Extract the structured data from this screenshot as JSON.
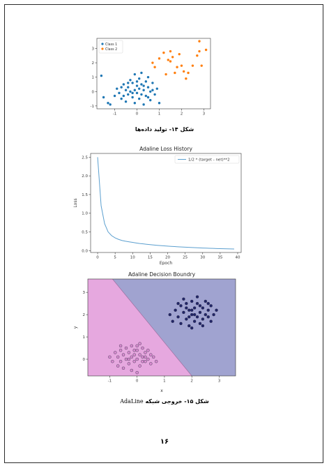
{
  "figures": {
    "fig14": {
      "caption": "شکل ۱۴- تولید داده‌ها"
    },
    "fig15": {
      "caption_rtl": "شکل ۱۵- خروجی شبکه",
      "caption_latin": "AdaLine"
    }
  },
  "page_number": "۱۶",
  "colors": {
    "class1": "#1f77b4",
    "class2": "#ff7f0e",
    "loss_line": "#5b9fcf",
    "region_a": "#e6a8df",
    "region_b": "#a0a3d0",
    "points_a": "#d98ad0",
    "points_b": "#1a1f63"
  },
  "chart_data": [
    {
      "type": "scatter",
      "title": "",
      "xlabel": "",
      "ylabel": "",
      "xlim": [
        -1.8,
        3.3
      ],
      "ylim": [
        -1.2,
        3.7
      ],
      "xticks": [
        -1,
        0,
        1,
        2,
        3
      ],
      "yticks": [
        -1,
        0,
        1,
        2,
        3
      ],
      "legend": "top-left",
      "series": [
        {
          "name": "Class 1",
          "color": "#1f77b4",
          "points": [
            [
              -1.6,
              1.1
            ],
            [
              -1.5,
              -0.4
            ],
            [
              -1.3,
              -0.8
            ],
            [
              -1.2,
              -0.9
            ],
            [
              -1.0,
              -0.3
            ],
            [
              -0.9,
              0.2
            ],
            [
              -0.8,
              -0.1
            ],
            [
              -0.7,
              -0.5
            ],
            [
              -0.6,
              0.5
            ],
            [
              -0.5,
              0.1
            ],
            [
              -0.5,
              -0.7
            ],
            [
              -0.4,
              0.3
            ],
            [
              -0.4,
              -0.2
            ],
            [
              -0.3,
              0.8
            ],
            [
              -0.3,
              0.0
            ],
            [
              -0.2,
              -0.4
            ],
            [
              -0.2,
              0.6
            ],
            [
              -0.1,
              1.2
            ],
            [
              -0.1,
              -0.8
            ],
            [
              0.0,
              0.4
            ],
            [
              0.0,
              -0.1
            ],
            [
              0.1,
              0.9
            ],
            [
              0.1,
              0.2
            ],
            [
              0.1,
              -0.5
            ],
            [
              0.2,
              1.3
            ],
            [
              0.2,
              0.5
            ],
            [
              0.2,
              -0.2
            ],
            [
              0.3,
              0.1
            ],
            [
              0.3,
              -0.9
            ],
            [
              0.4,
              0.7
            ],
            [
              0.4,
              -0.3
            ],
            [
              0.5,
              0.3
            ],
            [
              0.5,
              1.0
            ],
            [
              0.6,
              -0.6
            ],
            [
              0.6,
              0.0
            ],
            [
              0.7,
              0.6
            ],
            [
              0.8,
              -0.2
            ],
            [
              0.9,
              0.2
            ],
            [
              1.0,
              -0.8
            ],
            [
              -0.7,
              0.3
            ],
            [
              -0.6,
              -0.3
            ],
            [
              -0.1,
              0.1
            ],
            [
              0.3,
              0.4
            ],
            [
              -0.2,
              -0.1
            ],
            [
              0.0,
              0.7
            ],
            [
              0.5,
              -0.4
            ],
            [
              -0.4,
              0.6
            ],
            [
              0.7,
              0.1
            ]
          ]
        },
        {
          "name": "Class 2",
          "color": "#ff7f0e",
          "points": [
            [
              0.7,
              2.0
            ],
            [
              0.8,
              1.7
            ],
            [
              1.0,
              2.3
            ],
            [
              1.2,
              2.7
            ],
            [
              1.3,
              1.2
            ],
            [
              1.5,
              2.8
            ],
            [
              1.5,
              2.1
            ],
            [
              1.6,
              2.4
            ],
            [
              1.7,
              1.3
            ],
            [
              1.8,
              1.7
            ],
            [
              1.9,
              2.6
            ],
            [
              2.0,
              1.8
            ],
            [
              2.1,
              1.4
            ],
            [
              2.2,
              0.9
            ],
            [
              2.3,
              1.3
            ],
            [
              2.5,
              1.8
            ],
            [
              2.7,
              2.5
            ],
            [
              2.8,
              3.5
            ],
            [
              2.8,
              2.8
            ],
            [
              2.9,
              1.8
            ],
            [
              3.1,
              2.9
            ],
            [
              1.4,
              2.2
            ]
          ]
        }
      ]
    },
    {
      "type": "line",
      "title": "Adaline Loss History",
      "xlabel": "Epoch",
      "ylabel": "Loss",
      "xlim": [
        -2,
        41
      ],
      "ylim": [
        -0.05,
        2.6
      ],
      "xticks": [
        0,
        5,
        10,
        15,
        20,
        25,
        30,
        35,
        40
      ],
      "yticks": [
        0.0,
        0.5,
        1.0,
        1.5,
        2.0,
        2.5
      ],
      "legend": "top-right",
      "series": [
        {
          "name": "1/2 * (target - net)**2",
          "x": [
            0,
            1,
            2,
            3,
            4,
            5,
            6,
            7,
            8,
            9,
            10,
            11,
            12,
            13,
            14,
            15,
            16,
            17,
            18,
            19,
            20,
            21,
            22,
            23,
            24,
            25,
            26,
            27,
            28,
            29,
            30,
            31,
            32,
            33,
            34,
            35,
            36,
            37,
            38,
            39
          ],
          "values": [
            2.5,
            1.2,
            0.72,
            0.5,
            0.4,
            0.34,
            0.3,
            0.27,
            0.25,
            0.235,
            0.22,
            0.205,
            0.19,
            0.18,
            0.17,
            0.16,
            0.15,
            0.142,
            0.135,
            0.128,
            0.12,
            0.114,
            0.108,
            0.102,
            0.097,
            0.092,
            0.087,
            0.082,
            0.078,
            0.074,
            0.07,
            0.066,
            0.062,
            0.059,
            0.056,
            0.053,
            0.05,
            0.047,
            0.045,
            0.043
          ]
        }
      ]
    },
    {
      "type": "scatter",
      "title": "Adaline Decision Boundry",
      "xlabel": "x",
      "ylabel": "y",
      "xlim": [
        -1.8,
        3.6
      ],
      "ylim": [
        -0.75,
        3.6
      ],
      "xticks": [
        -1,
        0,
        1,
        2,
        3
      ],
      "yticks": [
        0,
        1,
        2,
        3
      ],
      "boundary": [
        [
          -0.9,
          3.6
        ],
        [
          2.0,
          -0.75
        ]
      ],
      "series": [
        {
          "name": "",
          "color": "#d98ad0",
          "points": [
            [
              -1.0,
              0.1
            ],
            [
              -0.9,
              -0.1
            ],
            [
              -0.8,
              0.3
            ],
            [
              -0.7,
              -0.3
            ],
            [
              -0.7,
              0.1
            ],
            [
              -0.6,
              0.4
            ],
            [
              -0.6,
              -0.1
            ],
            [
              -0.5,
              0.2
            ],
            [
              -0.5,
              -0.4
            ],
            [
              -0.4,
              0.5
            ],
            [
              -0.4,
              0.0
            ],
            [
              -0.3,
              -0.2
            ],
            [
              -0.3,
              0.3
            ],
            [
              -0.2,
              0.6
            ],
            [
              -0.2,
              0.1
            ],
            [
              -0.2,
              -0.5
            ],
            [
              -0.1,
              0.2
            ],
            [
              -0.1,
              -0.1
            ],
            [
              0.0,
              0.4
            ],
            [
              0.0,
              0.0
            ],
            [
              0.0,
              -0.6
            ],
            [
              0.1,
              0.7
            ],
            [
              0.1,
              0.2
            ],
            [
              0.1,
              -0.3
            ],
            [
              0.2,
              0.1
            ],
            [
              0.2,
              0.5
            ],
            [
              0.3,
              -0.1
            ],
            [
              0.3,
              0.3
            ],
            [
              0.4,
              0.0
            ],
            [
              0.4,
              0.4
            ],
            [
              0.5,
              -0.2
            ],
            [
              0.5,
              0.2
            ],
            [
              0.6,
              0.1
            ],
            [
              0.7,
              -0.1
            ],
            [
              -0.6,
              0.6
            ],
            [
              -0.3,
              0.0
            ],
            [
              0.2,
              -0.1
            ],
            [
              -0.1,
              0.4
            ],
            [
              0.0,
              0.6
            ],
            [
              0.3,
              0.1
            ]
          ]
        },
        {
          "name": "",
          "color": "#1a1f63",
          "points": [
            [
              1.2,
              2.0
            ],
            [
              1.3,
              1.7
            ],
            [
              1.4,
              2.2
            ],
            [
              1.5,
              1.9
            ],
            [
              1.6,
              2.4
            ],
            [
              1.6,
              1.6
            ],
            [
              1.7,
              2.1
            ],
            [
              1.8,
              2.5
            ],
            [
              1.8,
              1.8
            ],
            [
              1.9,
              2.2
            ],
            [
              1.9,
              1.5
            ],
            [
              2.0,
              2.0
            ],
            [
              2.0,
              2.6
            ],
            [
              2.1,
              1.7
            ],
            [
              2.1,
              2.3
            ],
            [
              2.2,
              1.9
            ],
            [
              2.2,
              2.5
            ],
            [
              2.3,
              2.1
            ],
            [
              2.3,
              1.6
            ],
            [
              2.4,
              2.3
            ],
            [
              2.4,
              1.8
            ],
            [
              2.5,
              2.0
            ],
            [
              2.5,
              2.6
            ],
            [
              2.6,
              1.9
            ],
            [
              2.6,
              2.2
            ],
            [
              2.7,
              1.7
            ],
            [
              2.7,
              2.4
            ],
            [
              2.8,
              2.0
            ],
            [
              2.9,
              2.2
            ],
            [
              2.0,
              1.4
            ],
            [
              1.7,
              2.7
            ],
            [
              2.2,
              2.8
            ],
            [
              1.5,
              2.5
            ],
            [
              2.4,
              1.5
            ],
            [
              2.1,
              2.0
            ],
            [
              1.9,
              1.9
            ],
            [
              2.3,
              2.4
            ],
            [
              1.8,
              2.3
            ],
            [
              2.6,
              2.5
            ],
            [
              2.0,
              2.2
            ]
          ]
        }
      ]
    }
  ]
}
